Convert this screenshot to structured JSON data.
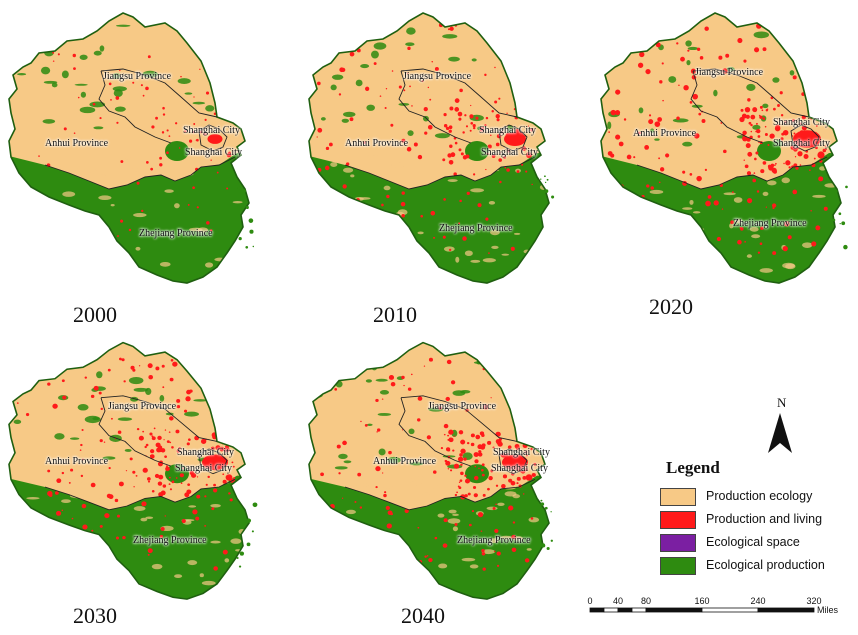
{
  "colors": {
    "production_ecology": "#F7C986",
    "production_living": "#FF1A1A",
    "ecological_space": "#7B1FA2",
    "ecological_production": "#2E8B10",
    "coast": "#1f5f10",
    "boundary": "#222222"
  },
  "panels": [
    {
      "year": "2000",
      "urban_level": 0.15
    },
    {
      "year": "2010",
      "urban_level": 0.5
    },
    {
      "year": "2020",
      "urban_level": 0.8
    },
    {
      "year": "2030",
      "urban_level": 0.7
    },
    {
      "year": "2040",
      "urban_level": 0.7
    }
  ],
  "place_labels": {
    "jiangsu": "Jiangsu Province",
    "anhui": "Anhui Province",
    "shanghai": "Shanghai City",
    "zhejiang": "Zhejiang Province"
  },
  "north_arrow": {
    "letter": "N"
  },
  "legend": {
    "title": "Legend",
    "items": [
      {
        "label": "Production ecology",
        "color": "#F7C986"
      },
      {
        "label": "Production and living",
        "color": "#FF1A1A"
      },
      {
        "label": "Ecological space",
        "color": "#7B1FA2"
      },
      {
        "label": "Ecological production",
        "color": "#2E8B10"
      }
    ]
  },
  "scale_bar": {
    "ticks": [
      "0",
      "40",
      "80",
      "160",
      "240",
      "320"
    ],
    "tick_values": [
      0,
      40,
      80,
      160,
      240,
      320
    ],
    "units": "Miles"
  }
}
